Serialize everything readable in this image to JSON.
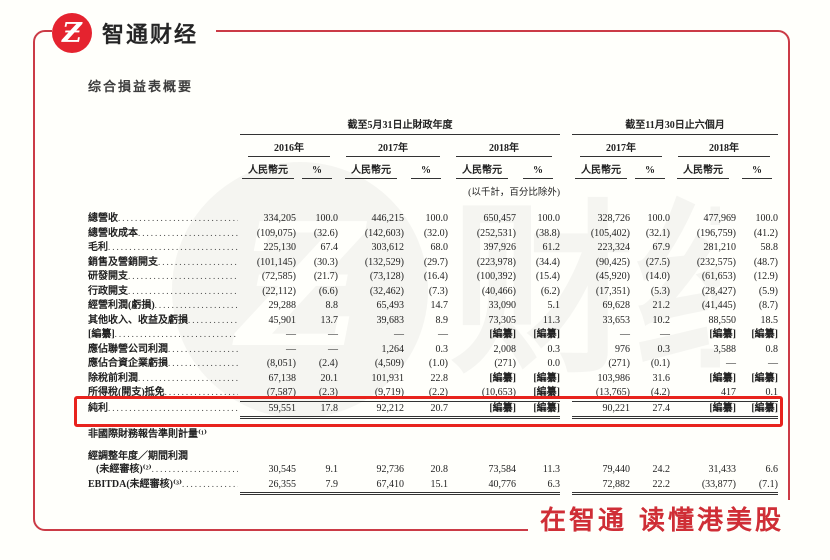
{
  "brand": {
    "logo_glyph": "Ƶ",
    "logo_text": "智通财经",
    "tagline": "在智通 读懂港美股",
    "logo_color": "#e5232f",
    "frame_color": "#cb3b46",
    "tagline_color": "#cf2e36",
    "highlight_color": "#e8231d"
  },
  "page": {
    "title": "综合損益表概要"
  },
  "table": {
    "group_headers": [
      {
        "label": "截至5月31日止財政年度"
      },
      {
        "label": "截至11月30日止六個月"
      }
    ],
    "year_headers": [
      "2016年",
      "2017年",
      "2018年",
      "2017年",
      "2018年"
    ],
    "sub_headers": {
      "currency": "人民幣元",
      "percent": "%"
    },
    "unit_note": "(以千計，百分比除外)",
    "rows": [
      {
        "label": "總營收",
        "values": [
          "334,205",
          "100.0",
          "446,215",
          "100.0",
          "650,457",
          "100.0",
          "328,726",
          "100.0",
          "477,969",
          "100.0"
        ]
      },
      {
        "label": "總營收成本",
        "values": [
          "(109,075)",
          "(32.6)",
          "(142,603)",
          "(32.0)",
          "(252,531)",
          "(38.8)",
          "(105,402)",
          "(32.1)",
          "(196,759)",
          "(41.2)"
        ]
      },
      {
        "label": "毛利",
        "values": [
          "225,130",
          "67.4",
          "303,612",
          "68.0",
          "397,926",
          "61.2",
          "223,324",
          "67.9",
          "281,210",
          "58.8"
        ]
      },
      {
        "label": "銷售及營銷開支",
        "values": [
          "(101,145)",
          "(30.3)",
          "(132,529)",
          "(29.7)",
          "(223,978)",
          "(34.4)",
          "(90,425)",
          "(27.5)",
          "(232,575)",
          "(48.7)"
        ]
      },
      {
        "label": "研發開支",
        "values": [
          "(72,585)",
          "(21.7)",
          "(73,128)",
          "(16.4)",
          "(100,392)",
          "(15.4)",
          "(45,920)",
          "(14.0)",
          "(61,653)",
          "(12.9)"
        ]
      },
      {
        "label": "行政開支",
        "values": [
          "(22,112)",
          "(6.6)",
          "(32,462)",
          "(7.3)",
          "(40,466)",
          "(6.2)",
          "(17,351)",
          "(5.3)",
          "(28,427)",
          "(5.9)"
        ]
      },
      {
        "label": "經營利潤(虧損)",
        "values": [
          "29,288",
          "8.8",
          "65,493",
          "14.7",
          "33,090",
          "5.1",
          "69,628",
          "21.2",
          "(41,445)",
          "(8.7)"
        ]
      },
      {
        "label": "其他收入、收益及虧損",
        "values": [
          "45,901",
          "13.7",
          "39,683",
          "8.9",
          "73,305",
          "11.3",
          "33,653",
          "10.2",
          "88,550",
          "18.5"
        ]
      },
      {
        "label": "[編纂]",
        "values": [
          "—",
          "—",
          "—",
          "—",
          "[編纂]",
          "[編纂]",
          "—",
          "—",
          "[編纂]",
          "[編纂]"
        ]
      },
      {
        "label": "應佔聯營公司利潤",
        "values": [
          "—",
          "—",
          "1,264",
          "0.3",
          "2,008",
          "0.3",
          "976",
          "0.3",
          "3,588",
          "0.8"
        ]
      },
      {
        "label": "應佔合資企業虧損",
        "values": [
          "(8,051)",
          "(2.4)",
          "(4,509)",
          "(1.0)",
          "(271)",
          "0.0",
          "(271)",
          "(0.1)",
          "—",
          "—"
        ]
      },
      {
        "label": "除稅前利潤",
        "values": [
          "67,138",
          "20.1",
          "101,931",
          "22.8",
          "[編纂]",
          "[編纂]",
          "103,986",
          "31.6",
          "[編纂]",
          "[編纂]"
        ]
      },
      {
        "label": "所得稅(開支)抵免",
        "underline": "single",
        "values": [
          "(7,587)",
          "(2.3)",
          "(9,719)",
          "(2.2)",
          "(10,653)",
          "[編纂]",
          "(13,765)",
          "(4.2)",
          "417",
          "0.1"
        ]
      },
      {
        "label": "純利",
        "highlight": true,
        "underline": "double",
        "values": [
          "59,551",
          "17.8",
          "92,212",
          "20.7",
          "[編纂]",
          "[編纂]",
          "90,221",
          "27.4",
          "[編纂]",
          "[編纂]"
        ]
      },
      {
        "type": "section",
        "label": "非國際財務報告準則計量⁽¹⁾"
      },
      {
        "label": "經調整年度／期間利潤",
        "label2": "(未經審核)⁽²⁾",
        "values": [
          "30,545",
          "9.1",
          "92,736",
          "20.8",
          "73,584",
          "11.3",
          "79,440",
          "24.2",
          "31,433",
          "6.6"
        ]
      },
      {
        "label": "EBITDA(未經審核)⁽³⁾",
        "underline": "double",
        "values": [
          "26,355",
          "7.9",
          "67,410",
          "15.1",
          "40,776",
          "6.3",
          "72,882",
          "22.2",
          "(33,877)",
          "(7.1)"
        ]
      }
    ]
  }
}
